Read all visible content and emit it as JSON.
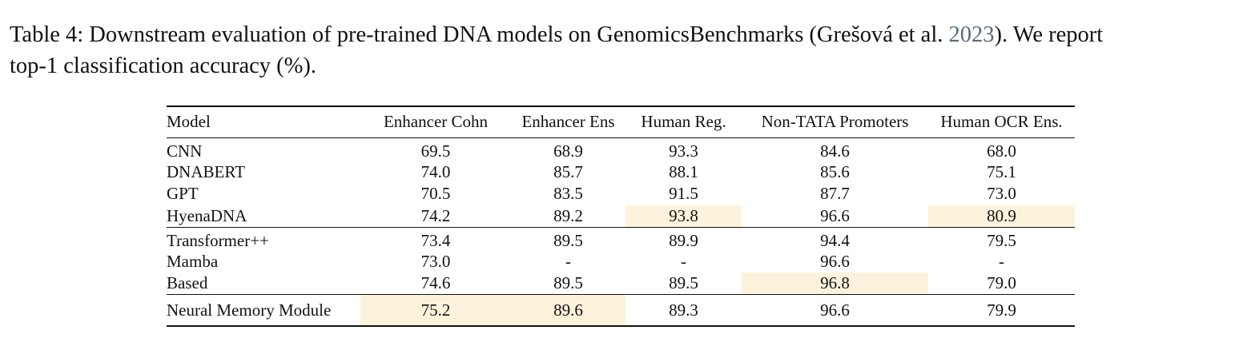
{
  "caption": {
    "prefix": "Table 4: Downstream evaluation of pre-trained DNA models on GenomicsBenchmarks (Grešová et al. ",
    "year": "2023",
    "suffix_line1": "). We report",
    "line2": "top-1 classification accuracy (%)."
  },
  "table": {
    "headers": [
      "Model",
      "Enhancer Cohn",
      "Enhancer Ens",
      "Human Reg.",
      "Non-TATA Promoters",
      "Human OCR Ens."
    ],
    "rows": [
      {
        "model": "CNN",
        "values": [
          "69.5",
          "68.9",
          "93.3",
          "84.6",
          "68.0"
        ]
      },
      {
        "model": "DNABERT",
        "values": [
          "74.0",
          "85.7",
          "88.1",
          "85.6",
          "75.1"
        ]
      },
      {
        "model": "GPT",
        "values": [
          "70.5",
          "83.5",
          "91.5",
          "87.7",
          "73.0"
        ]
      },
      {
        "model": "HyenaDNA",
        "values": [
          "74.2",
          "89.2",
          "93.8",
          "96.6",
          "80.9"
        ]
      },
      {
        "model": "Transformer++",
        "values": [
          "73.4",
          "89.5",
          "89.9",
          "94.4",
          "79.5"
        ]
      },
      {
        "model": "Mamba",
        "values": [
          "73.0",
          "-",
          "-",
          "96.6",
          "-"
        ]
      },
      {
        "model": "Based",
        "values": [
          "74.6",
          "89.5",
          "89.5",
          "96.8",
          "79.0"
        ]
      },
      {
        "model": "Neural Memory Module",
        "values": [
          "75.2",
          "89.6",
          "89.3",
          "96.6",
          "79.9"
        ]
      }
    ],
    "highlight_color": "#fdf3dc"
  }
}
